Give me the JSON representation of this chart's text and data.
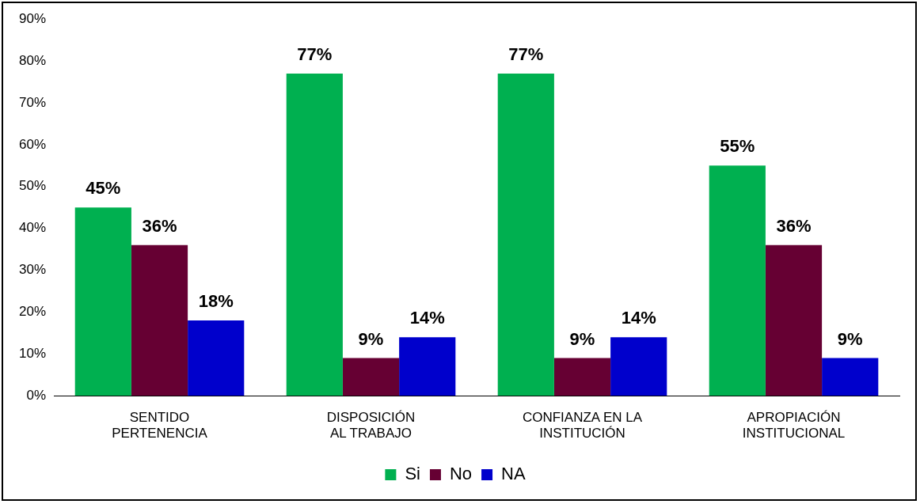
{
  "chart_data": {
    "type": "bar",
    "categories": [
      "SENTIDO\nPERTENENCIA",
      "DISPOSICIÓN\nAL TRABAJO",
      "CONFIANZA EN LA\nINSTITUCIÓN",
      "APROPIACIÓN\nINSTITUCIONAL"
    ],
    "series": [
      {
        "name": "Si",
        "color": "#00b050",
        "values": [
          45,
          77,
          77,
          55
        ],
        "value_labels": [
          "45%",
          "77%",
          "77%",
          "55%"
        ]
      },
      {
        "name": "No",
        "color": "#660033",
        "values": [
          36,
          9,
          9,
          36
        ],
        "value_labels": [
          "36%",
          "9%",
          "9%",
          "36%"
        ]
      },
      {
        "name": "NA",
        "color": "#0000cc",
        "values": [
          18,
          14,
          14,
          9
        ],
        "value_labels": [
          "18%",
          "14%",
          "14%",
          "9%"
        ]
      }
    ],
    "ylim": [
      0,
      90
    ],
    "yticks": [
      {
        "value": 0,
        "label": "0%"
      },
      {
        "value": 10,
        "label": "10%"
      },
      {
        "value": 20,
        "label": "20%"
      },
      {
        "value": 30,
        "label": "30%"
      },
      {
        "value": 40,
        "label": "40%"
      },
      {
        "value": 50,
        "label": "50%"
      },
      {
        "value": 60,
        "label": "60%"
      },
      {
        "value": 70,
        "label": "70%"
      },
      {
        "value": 80,
        "label": "80%"
      },
      {
        "value": 90,
        "label": "90%"
      }
    ],
    "grid": false,
    "legend": "bottom"
  }
}
